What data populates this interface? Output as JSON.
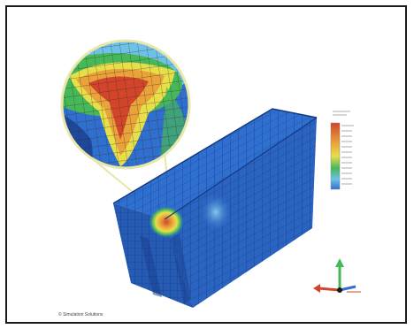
{
  "image": {
    "subject": "finite-element-mesh-render",
    "colors": {
      "mesh_blue": "#2f6fd0",
      "mesh_dark": "#1a3f8f",
      "hot_red": "#d2452a",
      "warm_orange": "#e9a33a",
      "mid_yellow": "#e7df4a",
      "cool_green": "#46b85a",
      "light_blue": "#6ec1e8",
      "frame_border": "#1a1a1a",
      "magnifier_ring": "#e8e6a8"
    },
    "caption_text": "© Simulation Solutions"
  }
}
